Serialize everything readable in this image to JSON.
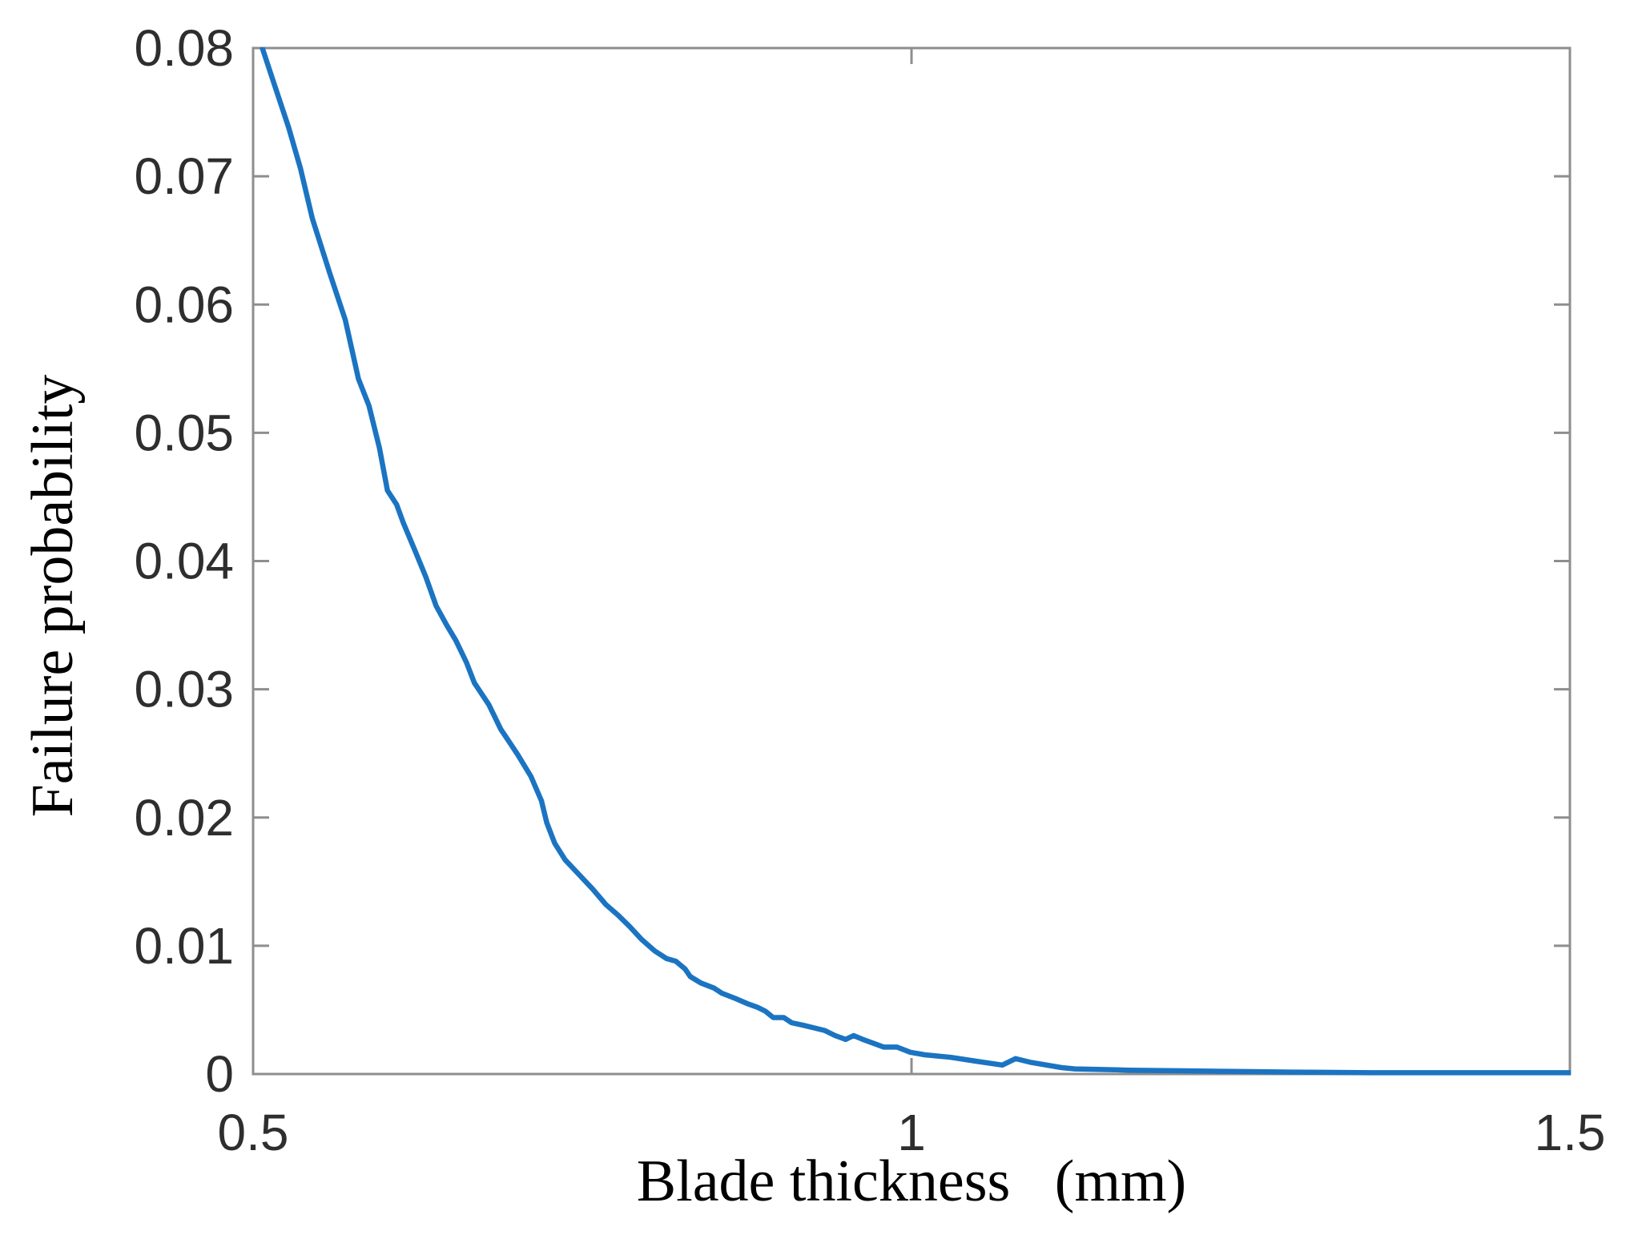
{
  "page": {
    "background": "#ffffff"
  },
  "chart_data": {
    "type": "line",
    "title": "",
    "xlabel": "Blade thickness   (mm)",
    "ylabel": "Failure probability",
    "xlim": [
      0.5,
      1.5
    ],
    "ylim": [
      0,
      0.08
    ],
    "x_ticks": [
      0.5,
      1,
      1.5
    ],
    "x_tick_labels": [
      "0.5",
      "1",
      "1.5"
    ],
    "y_ticks": [
      0,
      0.01,
      0.02,
      0.03,
      0.04,
      0.05,
      0.06,
      0.07,
      0.08
    ],
    "y_tick_labels": [
      "0",
      "0.01",
      "0.02",
      "0.03",
      "0.04",
      "0.05",
      "0.06",
      "0.07",
      "0.08"
    ],
    "grid": false,
    "box": true,
    "legend_position": "none",
    "colors": {
      "line": "#1b74c2",
      "axis": "#8e8e8e",
      "tick_text": "#2e2e2e",
      "label_text": "#000000"
    },
    "series": [
      {
        "name": "Failure probability",
        "x": [
          0.507,
          0.515,
          0.527,
          0.536,
          0.545,
          0.558,
          0.57,
          0.58,
          0.588,
          0.596,
          0.602,
          0.609,
          0.614,
          0.623,
          0.631,
          0.639,
          0.647,
          0.654,
          0.662,
          0.668,
          0.679,
          0.688,
          0.701,
          0.711,
          0.719,
          0.723,
          0.729,
          0.737,
          0.748,
          0.758,
          0.768,
          0.777,
          0.786,
          0.795,
          0.805,
          0.814,
          0.821,
          0.828,
          0.832,
          0.84,
          0.85,
          0.856,
          0.866,
          0.875,
          0.883,
          0.889,
          0.895,
          0.903,
          0.909,
          0.918,
          0.926,
          0.934,
          0.942,
          0.95,
          0.956,
          0.963,
          0.971,
          0.979,
          0.989,
          0.999,
          1.01,
          1.03,
          1.049,
          1.069,
          1.079,
          1.091,
          1.114,
          1.124,
          1.165,
          1.206,
          1.245,
          1.288,
          1.349,
          1.41,
          1.5
        ],
        "y": [
          0.08,
          0.0775,
          0.0738,
          0.0706,
          0.0667,
          0.0625,
          0.0588,
          0.0542,
          0.0521,
          0.0488,
          0.0455,
          0.0444,
          0.043,
          0.0408,
          0.0388,
          0.0365,
          0.035,
          0.0338,
          0.0321,
          0.0305,
          0.0288,
          0.0269,
          0.0249,
          0.0232,
          0.0213,
          0.0196,
          0.018,
          0.0167,
          0.0155,
          0.0144,
          0.0132,
          0.0124,
          0.0115,
          0.0105,
          0.0096,
          0.009,
          0.0088,
          0.0082,
          0.0076,
          0.0071,
          0.0067,
          0.0063,
          0.0059,
          0.0055,
          0.0052,
          0.0049,
          0.0044,
          0.0044,
          0.004,
          0.0038,
          0.0036,
          0.0034,
          0.003,
          0.0027,
          0.003,
          0.0027,
          0.0024,
          0.0021,
          0.0021,
          0.0017,
          0.0015,
          0.0013,
          0.001,
          0.0007,
          0.0012,
          0.0009,
          0.0005,
          0.0004,
          0.0003,
          0.00025,
          0.0002,
          0.00015,
          0.0001,
          0.0001,
          0.0001
        ]
      }
    ]
  }
}
